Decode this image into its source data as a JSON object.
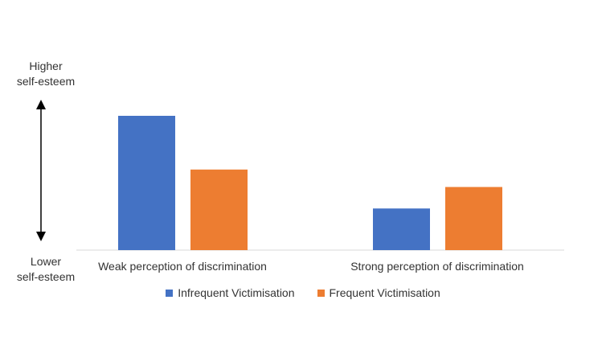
{
  "chart_data": {
    "type": "bar",
    "title": "",
    "xlabel": "",
    "ylabel_top": "Higher self-esteem",
    "ylabel_top_lines": [
      "Higher",
      "self-esteem"
    ],
    "ylabel_bottom_lines": [
      "Lower",
      "self-esteem"
    ],
    "ylim": [
      0,
      100
    ],
    "grid": false,
    "legend_position": "bottom",
    "categories": [
      "Weak perception of discrimination",
      "Strong perception of discrimination"
    ],
    "series": [
      {
        "name": "Infrequent Victimisation",
        "color": "#4472C4",
        "values": [
          100,
          31
        ]
      },
      {
        "name": "Frequent Victimisation",
        "color": "#ED7D31",
        "values": [
          60,
          47
        ]
      }
    ]
  }
}
